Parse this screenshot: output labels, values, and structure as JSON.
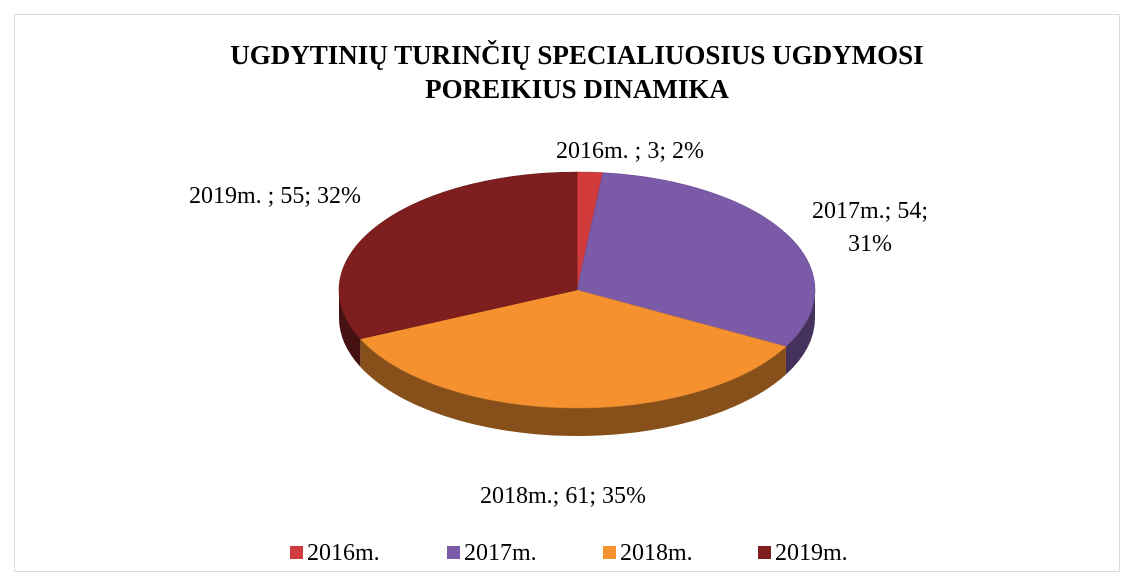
{
  "chart_data": {
    "type": "pie",
    "pie_style": "3d",
    "title": "UGDYTINIŲ TURINČIŲ SPECIALIUOSIUS UGDYMOSI POREIKIUS DINAMIKA",
    "categories": [
      "2016m.",
      "2017m.",
      "2018m.",
      "2019m."
    ],
    "values": [
      3,
      54,
      61,
      55
    ],
    "value_labels": [
      "2016m. ; 3; 2%",
      "2017m.; 54; 31%",
      "2018m.; 61; 35%",
      "2019m. ; 55; 32%"
    ],
    "colors": [
      "#d23b3b",
      "#7b5aa8",
      "#f5922f",
      "#7e1e1e"
    ],
    "legend": "bottom"
  }
}
